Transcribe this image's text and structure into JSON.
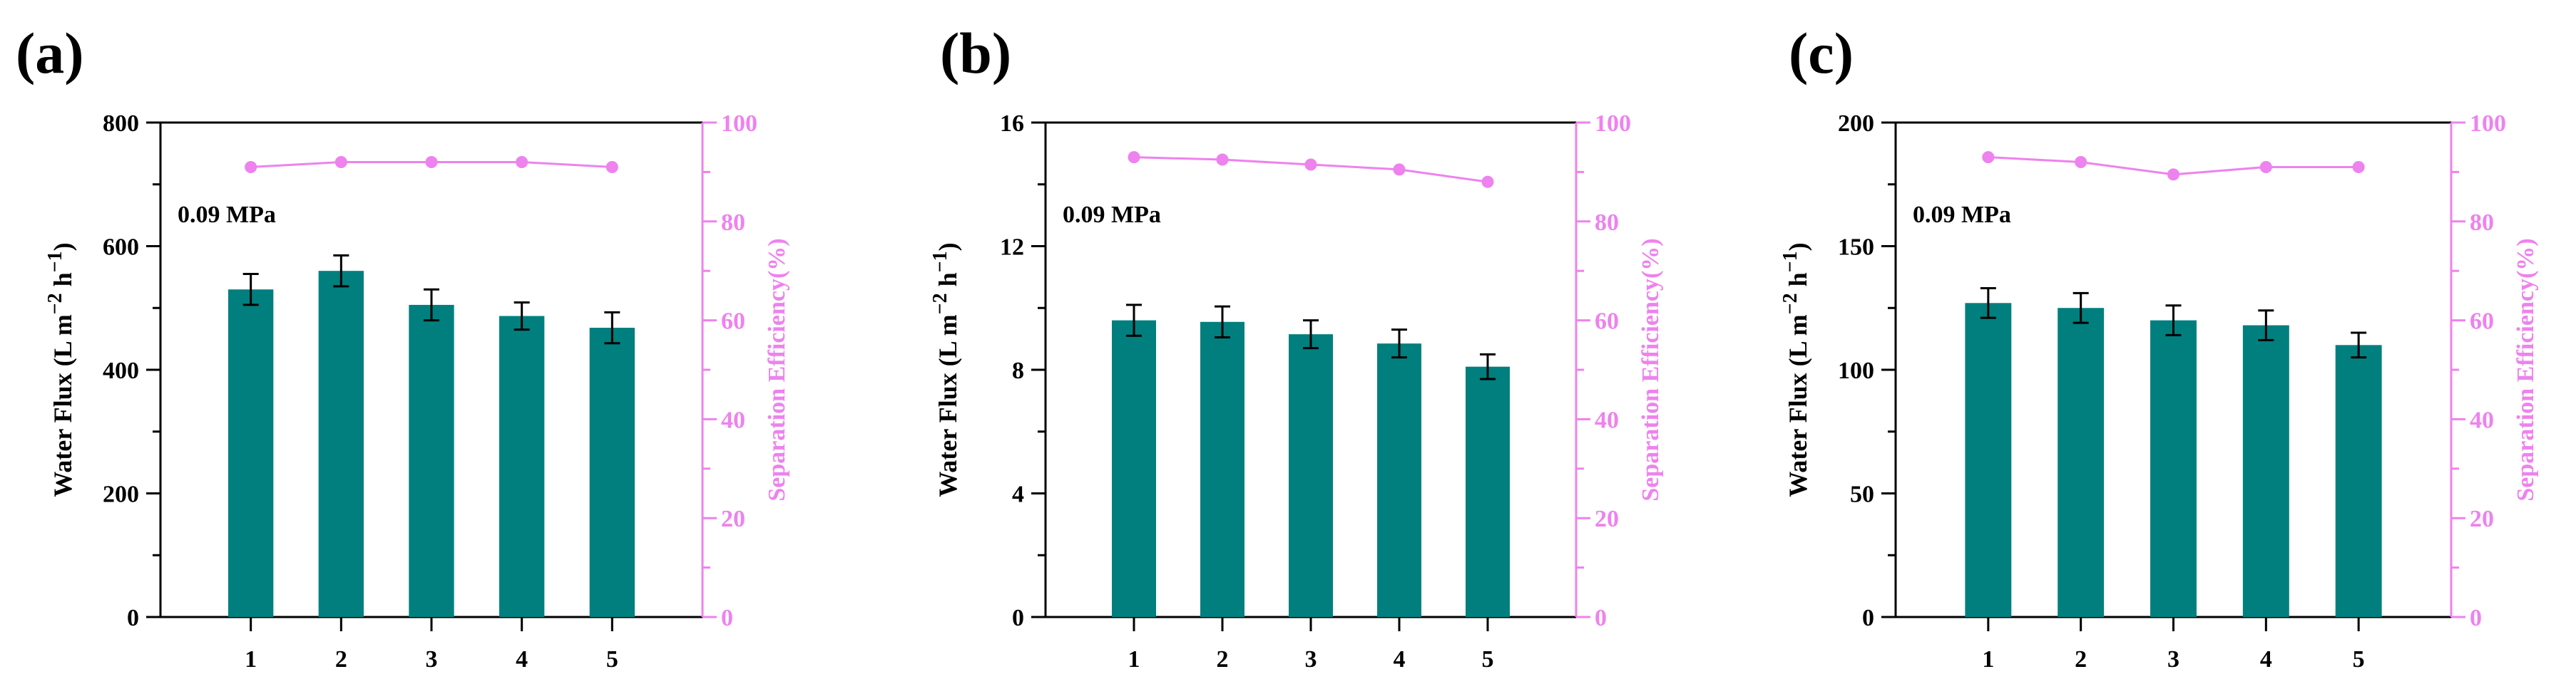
{
  "figure": {
    "bar_color": "#007F7F",
    "line_color": "#EE82EE",
    "axis_color": "#000000",
    "right_axis_color": "#EE82EE"
  },
  "chart_data": [
    {
      "type": "bar",
      "panel_label": "(a)",
      "annotation": "0.09 MPa",
      "categories": [
        "1",
        "2",
        "3",
        "4",
        "5"
      ],
      "series": [
        {
          "name": "Water Flux",
          "axis": "left",
          "values": [
            530,
            560,
            505,
            487,
            468
          ],
          "errors": [
            25,
            25,
            25,
            22,
            25
          ]
        },
        {
          "name": "Separation Efficiency",
          "axis": "right",
          "type": "line",
          "values": [
            91,
            92,
            92,
            92,
            91
          ]
        }
      ],
      "ylabel_main": "Water Flux (L m",
      "ylabel_sup1": "−2",
      "ylabel_mid": " h",
      "ylabel_sup2": "−1",
      "ylabel_end": ")",
      "y2label": "Separation Efficiency(%)",
      "ylim": [
        0,
        800
      ],
      "yticks": [
        0,
        200,
        400,
        600,
        800
      ],
      "ytick_labels": [
        "0",
        "200",
        "400",
        "600",
        "800"
      ],
      "y2lim": [
        0,
        100
      ],
      "y2ticks": [
        0,
        20,
        40,
        60,
        80,
        100
      ],
      "y2tick_labels": [
        "0",
        "20",
        "40",
        "60",
        "80",
        "100"
      ]
    },
    {
      "type": "bar",
      "panel_label": "(b)",
      "annotation": "0.09 MPa",
      "categories": [
        "1",
        "2",
        "3",
        "4",
        "5"
      ],
      "series": [
        {
          "name": "Water Flux",
          "axis": "left",
          "values": [
            9.6,
            9.55,
            9.15,
            8.85,
            8.1
          ],
          "errors": [
            0.5,
            0.5,
            0.45,
            0.45,
            0.4
          ]
        },
        {
          "name": "Separation Efficiency",
          "axis": "right",
          "type": "line",
          "values": [
            93,
            92.5,
            91.5,
            90.5,
            88
          ]
        }
      ],
      "ylabel_main": "Water Flux (L m",
      "ylabel_sup1": "−2",
      "ylabel_mid": " h",
      "ylabel_sup2": "−1",
      "ylabel_end": ")",
      "y2label": "Separation Efficiency(%)",
      "ylim": [
        0,
        16
      ],
      "yticks": [
        0,
        4,
        8,
        12,
        16
      ],
      "ytick_labels": [
        "0",
        "4",
        "8",
        "12",
        "16"
      ],
      "y2lim": [
        0,
        100
      ],
      "y2ticks": [
        0,
        20,
        40,
        60,
        80,
        100
      ],
      "y2tick_labels": [
        "0",
        "20",
        "40",
        "60",
        "80",
        "100"
      ]
    },
    {
      "type": "bar",
      "panel_label": "(c)",
      "annotation": "0.09 MPa",
      "categories": [
        "1",
        "2",
        "3",
        "4",
        "5"
      ],
      "series": [
        {
          "name": "Water Flux",
          "axis": "left",
          "values": [
            127,
            125,
            120,
            118,
            110
          ],
          "errors": [
            6,
            6,
            6,
            6,
            5
          ]
        },
        {
          "name": "Separation Efficiency",
          "axis": "right",
          "type": "line",
          "values": [
            93,
            92,
            89.5,
            91,
            91
          ]
        }
      ],
      "ylabel_main": "Water Flux (L m",
      "ylabel_sup1": "−2",
      "ylabel_mid": " h",
      "ylabel_sup2": "−1",
      "ylabel_end": ")",
      "y2label": "Separation Efficiency(%)",
      "ylim": [
        0,
        200
      ],
      "yticks": [
        0,
        50,
        100,
        150,
        200
      ],
      "ytick_labels": [
        "0",
        "50",
        "100",
        "150",
        "200"
      ],
      "y2lim": [
        0,
        100
      ],
      "y2ticks": [
        0,
        20,
        40,
        60,
        80,
        100
      ],
      "y2tick_labels": [
        "0",
        "20",
        "40",
        "60",
        "80",
        "100"
      ]
    }
  ]
}
